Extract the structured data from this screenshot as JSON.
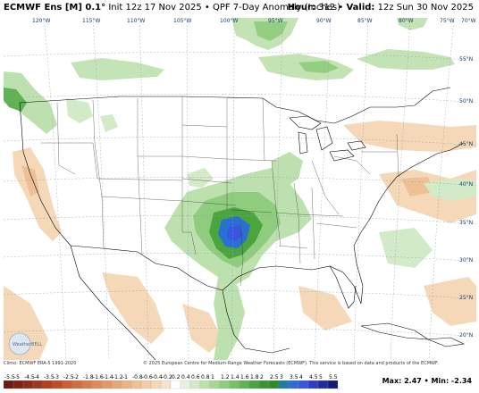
{
  "header": {
    "model": "ECMWF Ens [M] 0.1°",
    "subtitle": "Init 12z 17 Nov 2025 • QPF 7-Day Anomaly (Inches)",
    "hour_label": "Hour:",
    "hour_value": "312",
    "valid_label": "Valid:",
    "valid_value": "12z Sun 30 Nov 2025"
  },
  "map": {
    "lon_labels": [
      "120°W",
      "115°W",
      "110°W",
      "105°W",
      "100°W",
      "95°W",
      "90°W",
      "85°W",
      "80°W",
      "75°W",
      "70°W"
    ],
    "lat_labels": [
      "55°N",
      "50°N",
      "45°N",
      "40°N",
      "35°N",
      "30°N",
      "25°N",
      "20°N"
    ],
    "logo_text": "WeatherBELL"
  },
  "footer": {
    "clim": "Climo: ECMWF ERA-5 1991-2020",
    "copyright": "© 2025 European Centre for Medium-Range Weather Forecasts (ECMWF). This service is based on data and products of the ECMWF.",
    "colorbar_labels": [
      "-5.5",
      "-5",
      "-4.5",
      "-4",
      "-3.5",
      "-3",
      "-2.5",
      "-2",
      "-1.8",
      "-1.6",
      "-1.4",
      "-1.2",
      "-1",
      "-0.8",
      "-0.6",
      "-0.4",
      "-0.2",
      "0.2",
      "0.4",
      "0.6",
      "0.8",
      "1",
      "1.2",
      "1.4",
      "1.6",
      "1.8",
      "2",
      "2.5",
      "3",
      "3.5",
      "4",
      "4.5",
      "5",
      "5.5"
    ],
    "colorbar_colors": [
      "#6b1a12",
      "#7d2316",
      "#8f2c1a",
      "#a0361e",
      "#b14022",
      "#c24b27",
      "#cb5c33",
      "#d36c3f",
      "#d97c4c",
      "#de8a5a",
      "#e39868",
      "#e7a677",
      "#ebb386",
      "#eec096",
      "#f1cca7",
      "#f4d8b8",
      "#f6e3ca",
      "#ffffff",
      "#e6f2df",
      "#d2eac7",
      "#bde1ae",
      "#a6d795",
      "#8fcc7d",
      "#78c067",
      "#61b252",
      "#4aa43f",
      "#3a952f",
      "#2f8a2d",
      "#1f7ea0",
      "#2a6fd4",
      "#3a55de",
      "#2d3dc4",
      "#1f2d9e",
      "#121d78"
    ],
    "max_label": "Max: 2.47",
    "min_label": "Min: -2.34"
  },
  "colors": {
    "land": "#ffffff",
    "ocean": "#ffffff",
    "wet_light": "#bde1ae",
    "wet_mid": "#8fcc7d",
    "wet_dark": "#3a952f",
    "wet_max": "#2a6fd4",
    "dry": "#eec096"
  }
}
